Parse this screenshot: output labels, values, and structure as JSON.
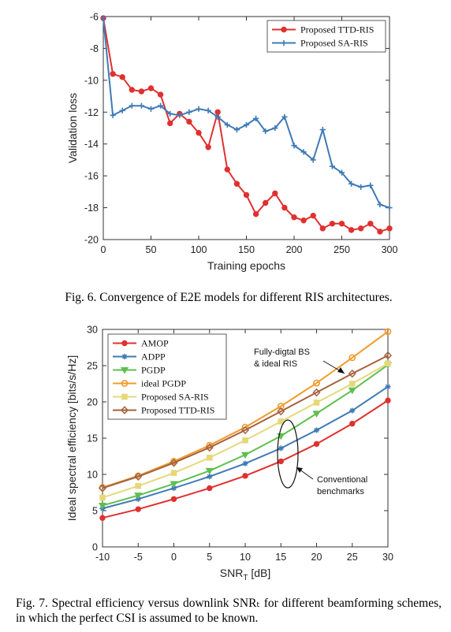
{
  "figure6": {
    "caption": "Fig. 6.   Convergence of E2E models for different RIS architectures."
  },
  "figure7": {
    "caption": "Fig. 7.   Spectral efficiency versus downlink SNRₜ for different beamforming schemes, in which the perfect CSI is assumed to be known."
  },
  "chart_data": [
    {
      "type": "line",
      "title": "",
      "xlabel": "Training epochs",
      "ylabel": "Validation loss",
      "xlim": [
        0,
        300
      ],
      "ylim": [
        -20,
        -6
      ],
      "xticks": [
        0,
        50,
        100,
        150,
        200,
        250,
        300
      ],
      "yticks": [
        -20,
        -18,
        -16,
        -14,
        -12,
        -10,
        -8,
        -6
      ],
      "grid": false,
      "legend": "top-right",
      "series": [
        {
          "name": "Proposed TTD-RIS",
          "color": "#e0302f",
          "marker": "circle",
          "x": [
            0,
            10,
            20,
            30,
            40,
            50,
            60,
            70,
            80,
            90,
            100,
            110,
            120,
            130,
            140,
            150,
            160,
            170,
            180,
            190,
            200,
            210,
            220,
            230,
            240,
            250,
            260,
            270,
            280,
            290,
            300
          ],
          "y": [
            -6.1,
            -9.6,
            -9.8,
            -10.6,
            -10.7,
            -10.5,
            -10.9,
            -12.7,
            -12.1,
            -12.6,
            -13.3,
            -14.2,
            -12.0,
            -15.6,
            -16.5,
            -17.2,
            -18.4,
            -17.7,
            -17.1,
            -18.0,
            -18.6,
            -18.8,
            -18.5,
            -19.3,
            -19.0,
            -19.0,
            -19.4,
            -19.3,
            -19.0,
            -19.5,
            -19.3
          ]
        },
        {
          "name": "Proposed SA-RIS",
          "color": "#3f7ab5",
          "marker": "plus",
          "x": [
            0,
            10,
            20,
            30,
            40,
            50,
            60,
            70,
            80,
            90,
            100,
            110,
            120,
            130,
            140,
            150,
            160,
            170,
            180,
            190,
            200,
            210,
            220,
            230,
            240,
            250,
            260,
            270,
            280,
            290,
            300
          ],
          "y": [
            -6.1,
            -12.2,
            -11.9,
            -11.6,
            -11.6,
            -11.8,
            -11.6,
            -12.1,
            -12.2,
            -12.0,
            -11.8,
            -11.9,
            -12.3,
            -12.8,
            -13.1,
            -12.8,
            -12.4,
            -13.2,
            -13.0,
            -12.3,
            -14.1,
            -14.5,
            -15.0,
            -13.1,
            -15.4,
            -15.8,
            -16.5,
            -16.7,
            -16.6,
            -17.8,
            -18.0
          ]
        }
      ]
    },
    {
      "type": "line",
      "title": "",
      "xlabel": "SNR",
      "xlabel_sub": "T",
      "xlabel_unit": " [dB]",
      "ylabel": "Ideal spectral efficiency [bits/s/Hz]",
      "xlim": [
        -10,
        30
      ],
      "ylim": [
        0,
        30
      ],
      "xticks": [
        -10,
        -5,
        0,
        5,
        10,
        15,
        20,
        25,
        30
      ],
      "yticks": [
        0,
        5,
        10,
        15,
        20,
        25,
        30
      ],
      "grid": false,
      "legend": "top-left",
      "annotations": [
        {
          "text_lines": [
            "Fully-digtal BS",
            "& ideal RIS"
          ]
        },
        {
          "text_lines": [
            "Conventional",
            "benchmarks"
          ]
        }
      ],
      "series": [
        {
          "name": "AMOP",
          "color": "#e0302f",
          "marker": "circle",
          "x": [
            -10,
            -5,
            0,
            5,
            10,
            15,
            20,
            25,
            30
          ],
          "y": [
            4.0,
            5.2,
            6.6,
            8.1,
            9.8,
            11.8,
            14.2,
            17.0,
            20.2
          ]
        },
        {
          "name": "ADPP",
          "color": "#3f7ab5",
          "marker": "star",
          "x": [
            -10,
            -5,
            0,
            5,
            10,
            15,
            20,
            25,
            30
          ],
          "y": [
            5.3,
            6.6,
            8.1,
            9.7,
            11.5,
            13.6,
            16.1,
            18.8,
            22.1
          ]
        },
        {
          "name": "PGDP",
          "color": "#5fbf4f",
          "marker": "triangle-down",
          "x": [
            -10,
            -5,
            0,
            5,
            10,
            15,
            20,
            25,
            30
          ],
          "y": [
            5.7,
            7.1,
            8.7,
            10.5,
            12.7,
            15.3,
            18.4,
            21.6,
            25.1
          ]
        },
        {
          "name": "ideal PGDP",
          "color": "#f39a2b",
          "marker": "circle-open",
          "x": [
            -10,
            -5,
            0,
            5,
            10,
            15,
            20,
            25,
            30
          ],
          "y": [
            8.2,
            9.8,
            11.8,
            14.0,
            16.5,
            19.4,
            22.6,
            26.1,
            29.7
          ]
        },
        {
          "name": "Proposed SA-RIS",
          "color": "#e6d87a",
          "marker": "square",
          "x": [
            -10,
            -5,
            0,
            5,
            10,
            15,
            20,
            25,
            30
          ],
          "y": [
            6.8,
            8.4,
            10.2,
            12.3,
            14.7,
            17.3,
            19.9,
            22.5,
            25.3
          ]
        },
        {
          "name": "Proposed TTD-RIS",
          "color": "#a4623f",
          "marker": "diamond",
          "x": [
            -10,
            -5,
            0,
            5,
            10,
            15,
            20,
            25,
            30
          ],
          "y": [
            8.1,
            9.7,
            11.6,
            13.7,
            16.1,
            18.7,
            21.3,
            23.9,
            26.4
          ]
        }
      ]
    }
  ]
}
